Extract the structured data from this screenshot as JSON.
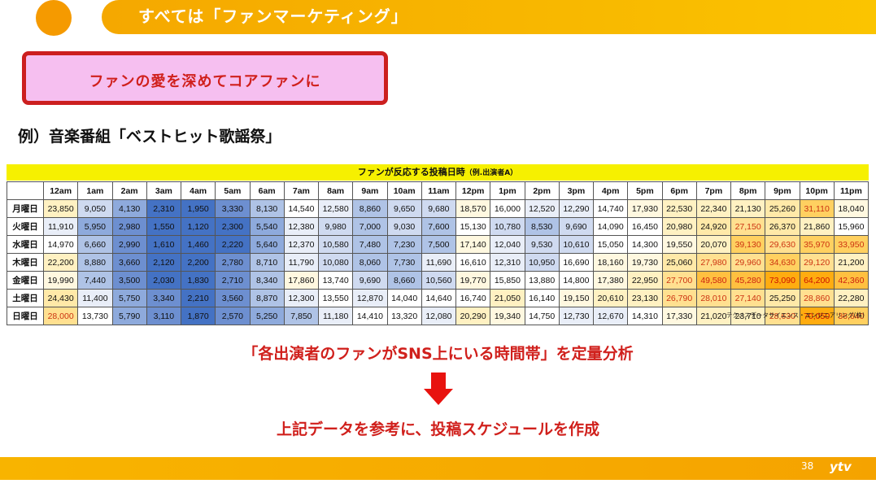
{
  "header": {
    "title": "すべては「ファンマーケティング」"
  },
  "callout": {
    "text": "ファンの愛を深めてコアファンに"
  },
  "example_heading": "例）音楽番組「ベストヒット歌謡祭」",
  "table": {
    "title": "ファンが反応する投稿日時",
    "subtitle": "（例.出演者A）",
    "hours": [
      "12am",
      "1am",
      "2am",
      "3am",
      "4am",
      "5am",
      "6am",
      "7am",
      "8am",
      "9am",
      "10am",
      "11am",
      "12pm",
      "1pm",
      "2pm",
      "3pm",
      "4pm",
      "5pm",
      "6pm",
      "7pm",
      "8pm",
      "9pm",
      "10pm",
      "11pm"
    ],
    "rows": [
      {
        "day": "月曜日",
        "values": [
          "23,850",
          "9,050",
          "4,130",
          "2,310",
          "1,950",
          "3,330",
          "8,130",
          "14,540",
          "12,580",
          "8,860",
          "9,650",
          "9,680",
          "18,570",
          "16,000",
          "12,520",
          "12,290",
          "14,740",
          "17,930",
          "22,530",
          "22,340",
          "21,130",
          "25,260",
          "31,110",
          "18,040"
        ]
      },
      {
        "day": "火曜日",
        "values": [
          "11,910",
          "5,950",
          "2,980",
          "1,550",
          "1,120",
          "2,300",
          "5,540",
          "12,380",
          "9,980",
          "7,000",
          "9,030",
          "7,600",
          "15,130",
          "10,780",
          "8,530",
          "9,690",
          "14,090",
          "16,450",
          "20,980",
          "24,920",
          "27,150",
          "26,370",
          "21,860",
          "15,960"
        ]
      },
      {
        "day": "水曜日",
        "values": [
          "14,970",
          "6,660",
          "2,990",
          "1,610",
          "1,460",
          "2,220",
          "5,640",
          "12,370",
          "10,580",
          "7,480",
          "7,230",
          "7,500",
          "17,140",
          "12,040",
          "9,530",
          "10,610",
          "15,050",
          "14,300",
          "19,550",
          "20,070",
          "39,130",
          "29,630",
          "35,970",
          "33,950"
        ]
      },
      {
        "day": "木曜日",
        "values": [
          "22,200",
          "8,880",
          "3,660",
          "2,120",
          "2,200",
          "2,780",
          "8,710",
          "11,790",
          "10,080",
          "8,060",
          "7,730",
          "11,690",
          "16,610",
          "12,310",
          "10,950",
          "16,690",
          "18,160",
          "19,730",
          "25,060",
          "27,980",
          "29,960",
          "34,630",
          "29,120",
          "21,200"
        ]
      },
      {
        "day": "金曜日",
        "values": [
          "19,990",
          "7,440",
          "3,500",
          "2,030",
          "1,830",
          "2,710",
          "8,340",
          "17,860",
          "13,740",
          "9,690",
          "8,660",
          "10,560",
          "19,770",
          "15,850",
          "13,880",
          "14,800",
          "17,380",
          "22,950",
          "27,700",
          "49,580",
          "45,280",
          "73,090",
          "64,200",
          "42,360"
        ]
      },
      {
        "day": "土曜日",
        "values": [
          "24,430",
          "11,400",
          "5,750",
          "3,340",
          "2,210",
          "3,560",
          "8,870",
          "12,300",
          "13,550",
          "12,870",
          "14,040",
          "14,640",
          "16,740",
          "21,050",
          "16,140",
          "19,150",
          "20,610",
          "23,130",
          "26,790",
          "28,010",
          "27,140",
          "25,250",
          "28,860",
          "22,280"
        ]
      },
      {
        "day": "日曜日",
        "values": [
          "28,000",
          "13,730",
          "5,790",
          "3,110",
          "1,870",
          "2,570",
          "5,250",
          "7,850",
          "11,180",
          "14,410",
          "13,320",
          "12,080",
          "20,290",
          "19,340",
          "14,750",
          "12,730",
          "12,670",
          "14,310",
          "17,330",
          "21,020",
          "23,710",
          "28,630",
          "70,050",
          "36,640"
        ]
      }
    ],
    "source": "テクノスデータサイエンス・エンジニアリング(株)"
  },
  "analysis_text": "「各出演者のファンがSNS上にいる時間帯」を定量分析",
  "plan_text": "上記データを参考に、投稿スケジュールを作成",
  "footer": {
    "page_number": "38",
    "logo": "ytv"
  },
  "colors": {
    "accent_red": "#d0201c",
    "accent_orange": "#f5a800",
    "callout_pink": "#f6bff0",
    "table_title_yellow": "#f6f000"
  }
}
